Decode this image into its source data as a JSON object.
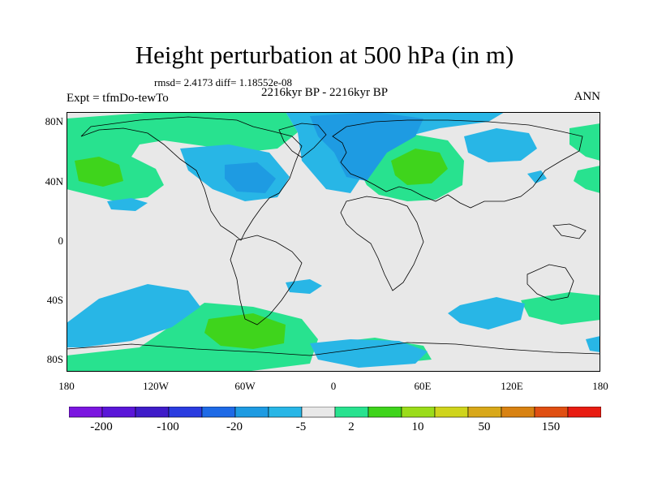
{
  "title": "Height perturbation at 500 hPa (in m)",
  "stats": "rmsd= 2.4173 diff= 1.18552e-08",
  "left_label": "Expt = tfmDo-tewTo",
  "center_label": "2216kyr BP - 2216kyr BP",
  "right_label": "ANN",
  "lat_ticks": [
    "80N",
    "40N",
    "0",
    "40S",
    "80S"
  ],
  "lon_ticks": [
    "180",
    "120W",
    "60W",
    "0",
    "60E",
    "120E",
    "180"
  ],
  "map": {
    "projection": "cylindrical equidistant",
    "lon_range": [
      -180,
      180
    ],
    "lat_range": [
      -90,
      90
    ],
    "land_fill": "none",
    "background_color": "#e8e8e8"
  },
  "colorbar": {
    "colors": [
      "#7b16e0",
      "#5a16d8",
      "#3f1cc9",
      "#2a3ce0",
      "#1e6ae6",
      "#1e9be2",
      "#28b6e6",
      "#e8e8e8",
      "#28e28f",
      "#3fd41c",
      "#9bdc1a",
      "#cfd41c",
      "#d8a81a",
      "#d88212",
      "#e04f12",
      "#e81c12"
    ],
    "tick_labels": [
      "-200",
      "-100",
      "-20",
      "-5",
      "2",
      "10",
      "50",
      "150"
    ]
  }
}
